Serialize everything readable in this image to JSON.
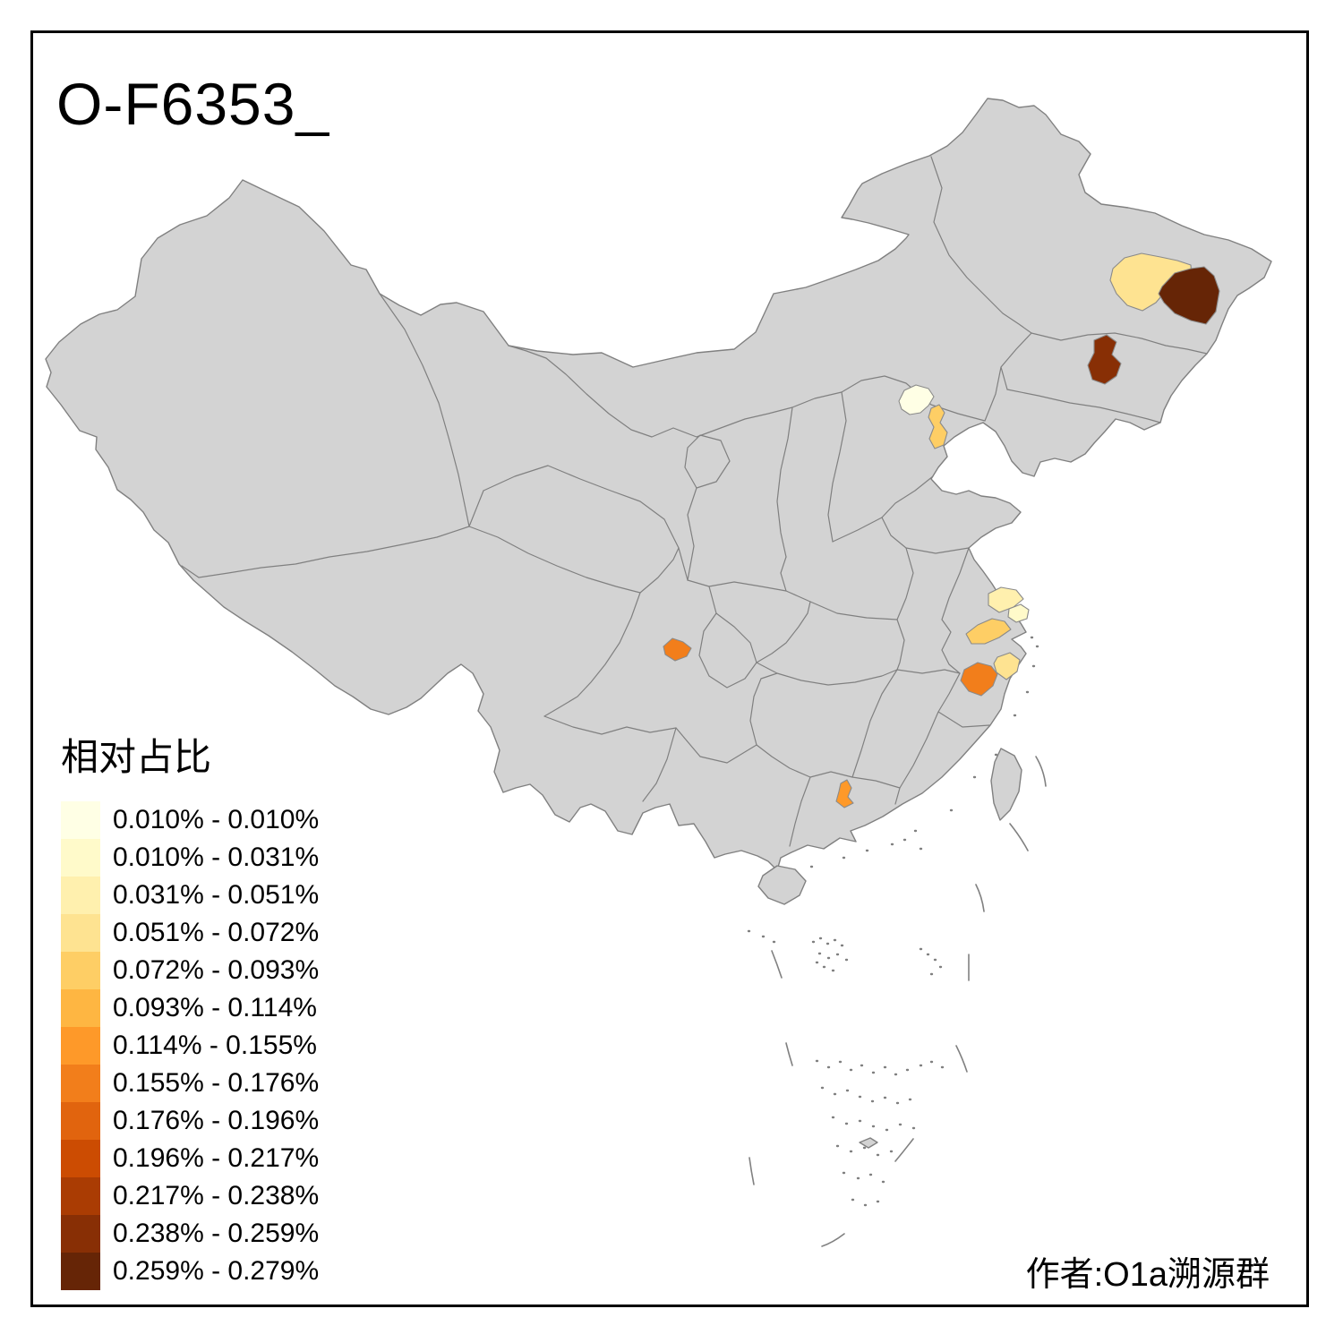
{
  "title": "O-F6353_",
  "attribution": "作者:O1a溯源群",
  "legend": {
    "title": "相对占比",
    "classes": [
      {
        "label": "0.010% - 0.010%",
        "color": "#FFFFE5"
      },
      {
        "label": "0.010% - 0.031%",
        "color": "#FFFACA"
      },
      {
        "label": "0.031% - 0.051%",
        "color": "#FFF0AE"
      },
      {
        "label": "0.051% - 0.072%",
        "color": "#FEE391"
      },
      {
        "label": "0.072% - 0.093%",
        "color": "#FECE65"
      },
      {
        "label": "0.093% - 0.114%",
        "color": "#FEB642"
      },
      {
        "label": "0.114% - 0.155%",
        "color": "#FE9929"
      },
      {
        "label": "0.155% - 0.176%",
        "color": "#F27E1B"
      },
      {
        "label": "0.176% - 0.196%",
        "color": "#E1640E"
      },
      {
        "label": "0.196% - 0.217%",
        "color": "#CC4C02"
      },
      {
        "label": "0.217% - 0.238%",
        "color": "#AA3C03"
      },
      {
        "label": "0.238% - 0.259%",
        "color": "#882F05"
      },
      {
        "label": "0.259% - 0.279%",
        "color": "#662506"
      }
    ]
  },
  "map": {
    "base_fill": "#D3D3D3",
    "border_color": "#808080",
    "frame_color": "#000000",
    "regions": [
      {
        "id": "northeast-pale-yellow-region",
        "color": "#FEE391",
        "class_label": "0.051% - 0.072%"
      },
      {
        "id": "northeast-dark-brown-region-east",
        "color": "#662506",
        "class_label": "0.259% - 0.279%"
      },
      {
        "id": "northeast-dark-brown-region-south",
        "color": "#882F05",
        "class_label": "0.238% - 0.259%"
      },
      {
        "id": "beijing-area-pale-region",
        "color": "#FFFFE5",
        "class_label": "0.010% - 0.010%"
      },
      {
        "id": "tianjin-area-yellow-region",
        "color": "#FECE65",
        "class_label": "0.072% - 0.093%"
      },
      {
        "id": "jiangsu-coast-pale-yellow-region",
        "color": "#FFF0AE",
        "class_label": "0.031% - 0.051%"
      },
      {
        "id": "shanghai-area-cream-region",
        "color": "#FFFACA",
        "class_label": "0.010% - 0.031%"
      },
      {
        "id": "south-jiangsu-yellow-orange-region",
        "color": "#FECE65",
        "class_label": "0.072% - 0.093%"
      },
      {
        "id": "northeast-zhejiang-light-region",
        "color": "#FEE391",
        "class_label": "0.051% - 0.072%"
      },
      {
        "id": "central-zhejiang-orange-region",
        "color": "#F27E1B",
        "class_label": "0.155% - 0.176%"
      },
      {
        "id": "sichuan-basin-orange-region",
        "color": "#F27E1B",
        "class_label": "0.155% - 0.176%"
      },
      {
        "id": "pearl-delta-orange-region",
        "color": "#FE9929",
        "class_label": "0.114% - 0.155%"
      }
    ]
  }
}
